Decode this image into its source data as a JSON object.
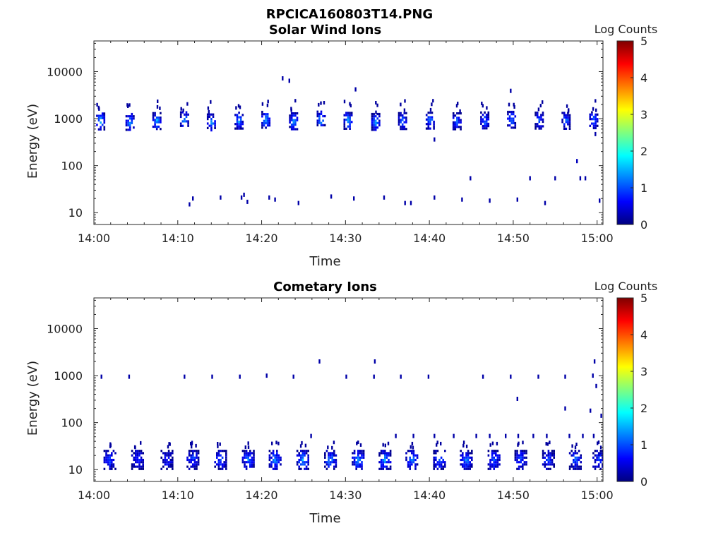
{
  "figure_title": "RPCICA160803T14.PNG",
  "colors": {
    "colormap": [
      "#00007f",
      "#0000ff",
      "#007fff",
      "#00ffff",
      "#7fff7f",
      "#ffff00",
      "#ff7f00",
      "#ff0000",
      "#7f0000"
    ]
  },
  "chart_data": [
    {
      "type": "heatmap",
      "title": "Solar Wind Ions",
      "xlabel": "Time",
      "ylabel": "Energy (eV)",
      "x_ticks": [
        "14:00",
        "14:10",
        "14:20",
        "14:30",
        "14:40",
        "14:50",
        "15:00"
      ],
      "x_tick_minutes": [
        0,
        10,
        20,
        30,
        40,
        50,
        60
      ],
      "xlim_minutes": [
        0,
        60.7
      ],
      "y_scale": "log",
      "ylim": [
        5.6,
        45000
      ],
      "y_ticks": [
        10,
        100,
        1000,
        10000
      ],
      "y_tick_labels": [
        "10",
        "100",
        "1000",
        "10000"
      ],
      "colorbar": {
        "label": "Log Counts",
        "range": [
          0,
          5
        ],
        "ticks": [
          "0",
          "1",
          "2",
          "3",
          "4",
          "5"
        ]
      },
      "bursts": [
        {
          "t": 0.7,
          "e": 920,
          "peak": 1.7
        },
        {
          "t": 4.2,
          "e": 900,
          "peak": 1.4
        },
        {
          "t": 7.4,
          "e": 940,
          "peak": 1.6
        },
        {
          "t": 10.7,
          "e": 980,
          "peak": 1.5
        },
        {
          "t": 13.9,
          "e": 880,
          "peak": 1.4
        },
        {
          "t": 17.2,
          "e": 960,
          "peak": 1.5
        },
        {
          "t": 20.4,
          "e": 1000,
          "peak": 1.6
        },
        {
          "t": 23.7,
          "e": 930,
          "peak": 1.4
        },
        {
          "t": 27.0,
          "e": 1010,
          "peak": 1.5
        },
        {
          "t": 30.2,
          "e": 950,
          "peak": 1.4
        },
        {
          "t": 33.5,
          "e": 900,
          "peak": 1.5
        },
        {
          "t": 36.7,
          "e": 940,
          "peak": 1.3
        },
        {
          "t": 40.0,
          "e": 960,
          "peak": 1.3
        },
        {
          "t": 43.2,
          "e": 930,
          "peak": 1.2
        },
        {
          "t": 46.5,
          "e": 970,
          "peak": 1.2
        },
        {
          "t": 49.7,
          "e": 1000,
          "peak": 1.3
        },
        {
          "t": 53.0,
          "e": 960,
          "peak": 1.2
        },
        {
          "t": 56.2,
          "e": 950,
          "peak": 1.2
        },
        {
          "t": 59.5,
          "e": 980,
          "peak": 1.3
        }
      ],
      "specks": [
        {
          "t": 22.5,
          "e": 7200,
          "v": 0.2
        },
        {
          "t": 23.3,
          "e": 6400,
          "v": 0.2
        },
        {
          "t": 31.2,
          "e": 4200,
          "v": 0.2
        },
        {
          "t": 49.7,
          "e": 3900,
          "v": 0.2
        },
        {
          "t": 40.6,
          "e": 360,
          "v": 0.2
        },
        {
          "t": 59.8,
          "e": 470,
          "v": 0.2
        },
        {
          "t": 57.6,
          "e": 125,
          "v": 0.3
        },
        {
          "t": 44.9,
          "e": 54,
          "v": 0.2
        },
        {
          "t": 52.0,
          "e": 54,
          "v": 0.2
        },
        {
          "t": 55.0,
          "e": 54,
          "v": 0.2
        },
        {
          "t": 58.0,
          "e": 54,
          "v": 0.2
        },
        {
          "t": 58.6,
          "e": 54,
          "v": 0.2
        },
        {
          "t": 11.8,
          "e": 20,
          "v": 0.2
        },
        {
          "t": 11.4,
          "e": 15,
          "v": 0.2
        },
        {
          "t": 15.1,
          "e": 21,
          "v": 0.2
        },
        {
          "t": 17.6,
          "e": 21,
          "v": 0.2
        },
        {
          "t": 18.3,
          "e": 17,
          "v": 0.2
        },
        {
          "t": 17.9,
          "e": 24,
          "v": 0.2
        },
        {
          "t": 20.9,
          "e": 21,
          "v": 0.2
        },
        {
          "t": 21.6,
          "e": 19,
          "v": 0.2
        },
        {
          "t": 24.4,
          "e": 16,
          "v": 0.2
        },
        {
          "t": 28.3,
          "e": 22,
          "v": 0.2
        },
        {
          "t": 31.0,
          "e": 20,
          "v": 0.2
        },
        {
          "t": 34.6,
          "e": 21,
          "v": 0.2
        },
        {
          "t": 37.1,
          "e": 16,
          "v": 0.2
        },
        {
          "t": 37.8,
          "e": 16,
          "v": 0.2
        },
        {
          "t": 40.6,
          "e": 21,
          "v": 0.2
        },
        {
          "t": 43.9,
          "e": 19,
          "v": 0.2
        },
        {
          "t": 47.2,
          "e": 18,
          "v": 0.2
        },
        {
          "t": 50.5,
          "e": 19,
          "v": 0.2
        },
        {
          "t": 53.8,
          "e": 16,
          "v": 0.2
        },
        {
          "t": 60.3,
          "e": 18,
          "v": 0.2
        }
      ]
    },
    {
      "type": "heatmap",
      "title": "Cometary Ions",
      "xlabel": "Time",
      "ylabel": "Energy (eV)",
      "x_ticks": [
        "14:00",
        "14:10",
        "14:20",
        "14:30",
        "14:40",
        "14:50",
        "15:00"
      ],
      "x_tick_minutes": [
        0,
        10,
        20,
        30,
        40,
        50,
        60
      ],
      "xlim_minutes": [
        0,
        60.7
      ],
      "y_scale": "log",
      "ylim": [
        5.6,
        45000
      ],
      "y_ticks": [
        10,
        100,
        1000,
        10000
      ],
      "y_tick_labels": [
        "10",
        "100",
        "1000",
        "10000"
      ],
      "colorbar": {
        "label": "Log Counts",
        "range": [
          0,
          5
        ],
        "ticks": [
          "0",
          "1",
          "2",
          "3",
          "4",
          "5"
        ]
      },
      "bursts": [
        {
          "t": 1.8,
          "e": 17,
          "peak": 0.9
        },
        {
          "t": 5.1,
          "e": 17,
          "peak": 0.8
        },
        {
          "t": 8.6,
          "e": 17,
          "peak": 0.7
        },
        {
          "t": 11.7,
          "e": 17,
          "peak": 1.0
        },
        {
          "t": 15.0,
          "e": 17,
          "peak": 1.0
        },
        {
          "t": 18.3,
          "e": 17,
          "peak": 1.2
        },
        {
          "t": 21.5,
          "e": 17,
          "peak": 1.3
        },
        {
          "t": 24.8,
          "e": 17,
          "peak": 1.4
        },
        {
          "t": 28.1,
          "e": 17,
          "peak": 1.3
        },
        {
          "t": 31.4,
          "e": 17,
          "peak": 1.3
        },
        {
          "t": 34.6,
          "e": 17,
          "peak": 1.4
        },
        {
          "t": 37.8,
          "e": 17,
          "peak": 1.3
        },
        {
          "t": 41.1,
          "e": 17,
          "peak": 1.2
        },
        {
          "t": 44.3,
          "e": 17,
          "peak": 1.2
        },
        {
          "t": 47.6,
          "e": 17,
          "peak": 1.1
        },
        {
          "t": 50.8,
          "e": 17,
          "peak": 1.0
        },
        {
          "t": 54.1,
          "e": 17,
          "peak": 1.0
        },
        {
          "t": 57.3,
          "e": 17,
          "peak": 1.1
        },
        {
          "t": 60.1,
          "e": 17,
          "peak": 0.9
        }
      ],
      "specks": [
        {
          "t": 0.9,
          "e": 950,
          "v": 0.2
        },
        {
          "t": 4.2,
          "e": 950,
          "v": 0.2
        },
        {
          "t": 10.8,
          "e": 950,
          "v": 0.2
        },
        {
          "t": 14.1,
          "e": 950,
          "v": 0.2
        },
        {
          "t": 17.4,
          "e": 950,
          "v": 0.2
        },
        {
          "t": 20.6,
          "e": 1000,
          "v": 0.2
        },
        {
          "t": 23.8,
          "e": 950,
          "v": 0.2
        },
        {
          "t": 26.9,
          "e": 2000,
          "v": 0.2
        },
        {
          "t": 30.1,
          "e": 950,
          "v": 0.2
        },
        {
          "t": 33.5,
          "e": 2000,
          "v": 0.2
        },
        {
          "t": 33.4,
          "e": 950,
          "v": 0.2
        },
        {
          "t": 36.6,
          "e": 950,
          "v": 0.2
        },
        {
          "t": 39.9,
          "e": 950,
          "v": 0.2
        },
        {
          "t": 46.4,
          "e": 950,
          "v": 0.2
        },
        {
          "t": 49.7,
          "e": 950,
          "v": 0.2
        },
        {
          "t": 53.0,
          "e": 950,
          "v": 0.2
        },
        {
          "t": 56.2,
          "e": 950,
          "v": 0.2
        },
        {
          "t": 59.5,
          "e": 1000,
          "v": 0.2
        },
        {
          "t": 59.7,
          "e": 2000,
          "v": 0.2
        },
        {
          "t": 59.9,
          "e": 600,
          "v": 0.2
        },
        {
          "t": 50.5,
          "e": 320,
          "v": 0.2
        },
        {
          "t": 56.2,
          "e": 200,
          "v": 0.2
        },
        {
          "t": 59.2,
          "e": 180,
          "v": 0.2
        },
        {
          "t": 60.5,
          "e": 140,
          "v": 0.2
        },
        {
          "t": 25.9,
          "e": 52,
          "v": 0.2
        },
        {
          "t": 11.7,
          "e": 37,
          "v": 0.2
        },
        {
          "t": 36.0,
          "e": 52,
          "v": 0.2
        },
        {
          "t": 38.1,
          "e": 52,
          "v": 0.2
        },
        {
          "t": 40.6,
          "e": 52,
          "v": 0.2
        },
        {
          "t": 42.9,
          "e": 52,
          "v": 0.2
        },
        {
          "t": 45.6,
          "e": 52,
          "v": 0.2
        },
        {
          "t": 47.2,
          "e": 52,
          "v": 0.2
        },
        {
          "t": 49.1,
          "e": 52,
          "v": 0.2
        },
        {
          "t": 50.6,
          "e": 52,
          "v": 0.2
        },
        {
          "t": 52.4,
          "e": 52,
          "v": 0.2
        },
        {
          "t": 54.0,
          "e": 52,
          "v": 0.2
        },
        {
          "t": 56.7,
          "e": 52,
          "v": 0.2
        },
        {
          "t": 58.3,
          "e": 52,
          "v": 0.2
        },
        {
          "t": 59.6,
          "e": 52,
          "v": 0.2
        }
      ]
    }
  ]
}
